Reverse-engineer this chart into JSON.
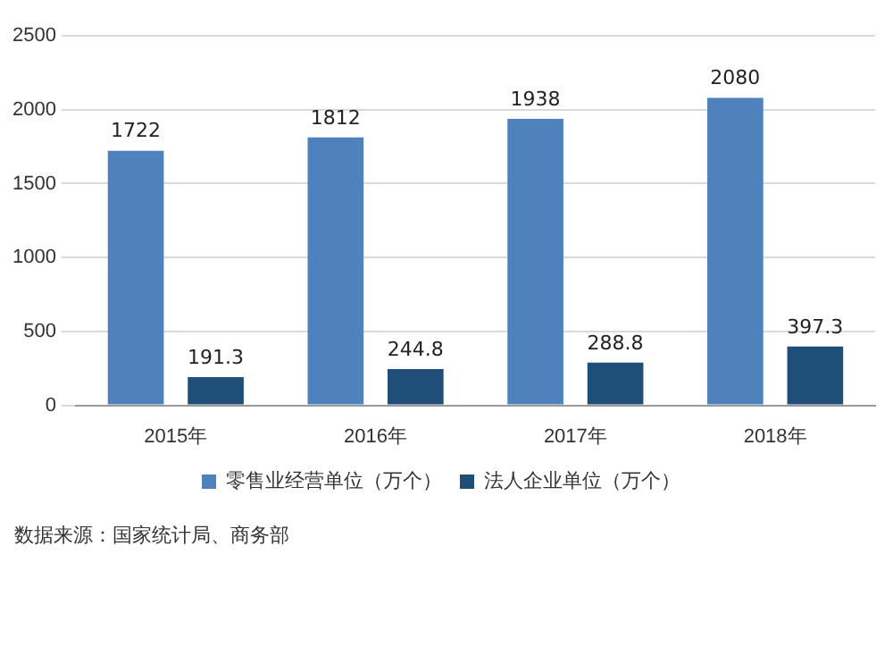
{
  "chart_data": {
    "type": "bar",
    "categories": [
      "2015年",
      "2016年",
      "2017年",
      "2018年"
    ],
    "series": [
      {
        "name": "零售业经营单位（万个）",
        "color": "#4f81bd",
        "values": [
          1722,
          1812,
          1938,
          2080
        ]
      },
      {
        "name": "法人企业单位（万个）",
        "color": "#1f4e79",
        "values": [
          191.3,
          244.8,
          288.8,
          397.3
        ]
      }
    ],
    "ylim": [
      0,
      2500
    ],
    "yticks": [
      0,
      500,
      1000,
      1500,
      2000,
      2500
    ],
    "grid": "y",
    "legend": "bottom",
    "data_labels": true,
    "annotations": [
      "数据来源：国家统计局、商务部"
    ]
  }
}
